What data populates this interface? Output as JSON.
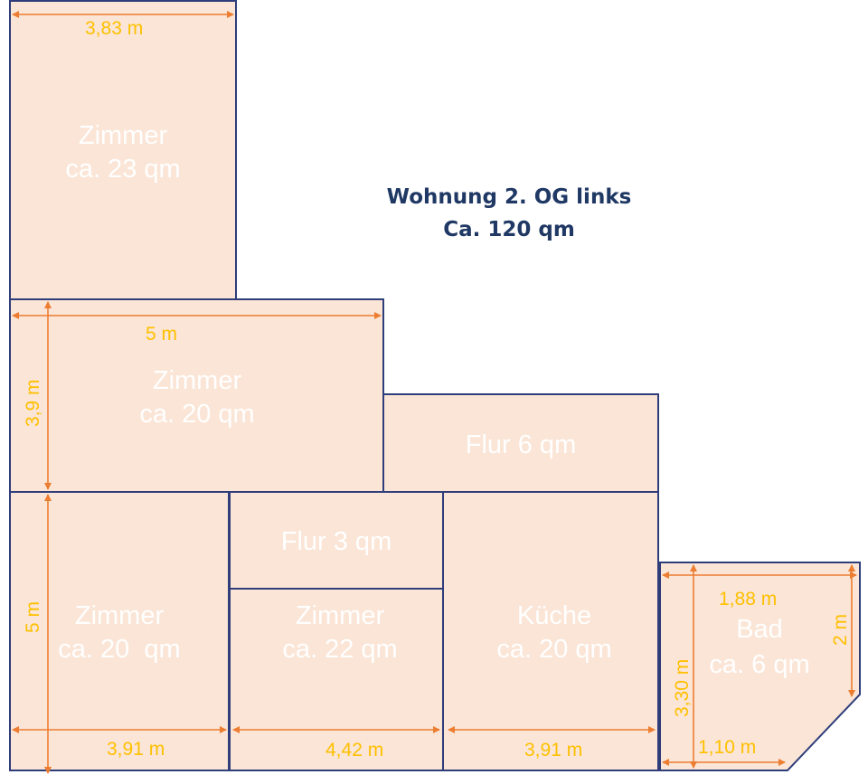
{
  "title": {
    "line1": "Wohnung 2. OG links",
    "line2": "Ca. 120 qm"
  },
  "rooms": {
    "zimmer_top": {
      "name": "Zimmer",
      "area": "ca. 23 qm"
    },
    "zimmer_middle": {
      "name": "Zimmer",
      "area": "ca. 20 qm"
    },
    "flur_6": {
      "name": "Flur 6 qm"
    },
    "zimmer_bottom_left": {
      "name": "Zimmer",
      "area": "ca. 20  qm"
    },
    "flur_3": {
      "name": "Flur 3 qm"
    },
    "zimmer_bottom_center": {
      "name": "Zimmer",
      "area": "ca. 22 qm"
    },
    "kueche": {
      "name": "Küche",
      "area": "ca. 20 qm"
    },
    "bad": {
      "name": "Bad",
      "area": "ca. 6 qm"
    }
  },
  "dimensions": {
    "top_width": "3,83 m",
    "middle_width": "5 m",
    "middle_height": "3,9 m",
    "bottom_left_height": "5 m",
    "bottom_left_width": "3,91 m",
    "bottom_center_width": "4,42 m",
    "kueche_width": "3,91 m",
    "bad_top_width": "1,88 m",
    "bad_right_height": "2 m",
    "bad_left_height": "3,30 m",
    "bad_bottom_width": "1,10 m"
  },
  "colors": {
    "room_fill": "#fbe5d6",
    "wall": "#2f3e7a",
    "dimension_line": "#ed7d31",
    "dimension_text": "#ffc000",
    "room_text": "#ffffff",
    "title_text": "#1f3864"
  }
}
